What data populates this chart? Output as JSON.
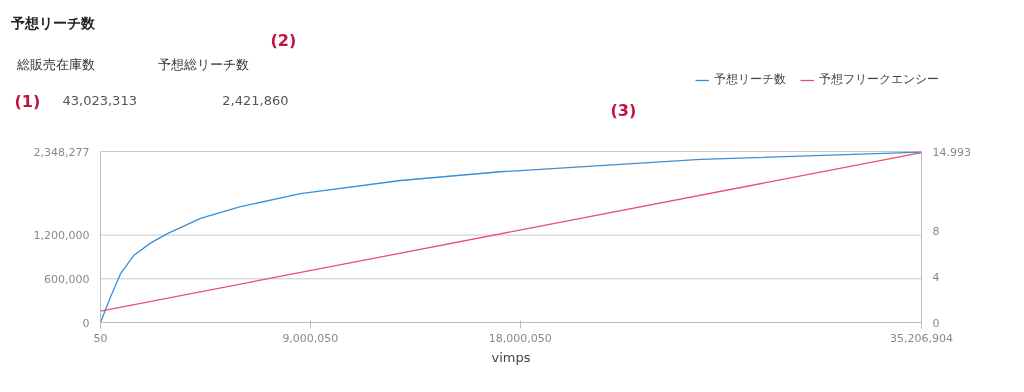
{
  "chart_data": {
    "type": "line",
    "title": "予想リーチ数",
    "xlabel": "vimps",
    "annotations": [
      "総販売在庫数",
      "予想総リーチ数",
      "43,023,313",
      "2,421,860",
      "(1)",
      "(2)",
      "(3)"
    ],
    "x": [
      50,
      430000,
      860000,
      1420000,
      2140000,
      2870000,
      4290000,
      6000000,
      8580000,
      12870000,
      17150000,
      25730000,
      35206904
    ],
    "series": [
      {
        "name": "予想リーチ数",
        "color": "#3a8fd6",
        "values": [
          0,
          350000,
          670000,
          920000,
          1090000,
          1220000,
          1430000,
          1590000,
          1770000,
          1950000,
          2070000,
          2240000,
          2340000
        ]
      },
      {
        "name": "予想フリークエンシー",
        "color": "#e8506e",
        "axis": "y2",
        "x": [
          50,
          35206904
        ],
        "values": [
          1.0,
          14.9
        ]
      }
    ],
    "xlim": [
      50,
      35206904
    ],
    "xticks": [
      50,
      {
        "value": 9000050,
        "label": "9,000,050"
      },
      {
        "value": 18000050,
        "label": "18,000,050"
      },
      {
        "value": 35206904,
        "label": "35,206,904"
      }
    ],
    "ylim": [
      0,
      2348277
    ],
    "yticks": [
      0,
      {
        "value": 600000,
        "label": "600,000"
      },
      {
        "value": 1200000,
        "label": "1,200,000"
      },
      {
        "value": 2348277,
        "label": "2,348,277"
      }
    ],
    "y2lim": [
      0,
      14.993
    ],
    "y2ticks": [
      0,
      4,
      8,
      14.993
    ],
    "grid": "y",
    "legend": "top right",
    "line_style": "solid"
  }
}
